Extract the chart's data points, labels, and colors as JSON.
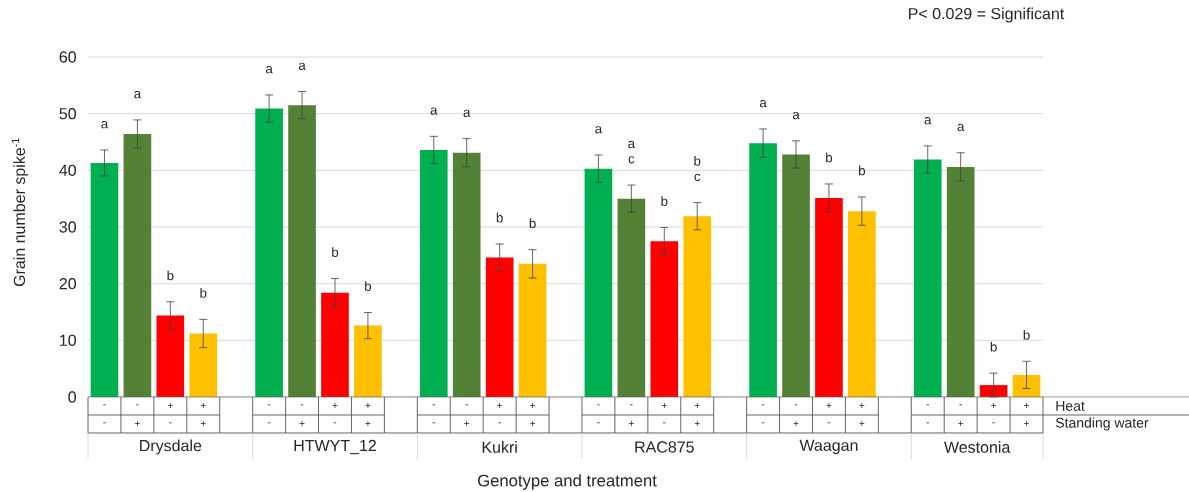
{
  "chart_data": {
    "type": "bar",
    "ylabel": "Grain number spike$^{-1}$",
    "xlabel": "Genotype and treatment",
    "categories": [
      "Drysdale",
      "HTWYT_12",
      "Kukri",
      "RAC875",
      "Waagan",
      "Westonia"
    ],
    "series": [
      {
        "color": "#00b050",
        "values": [
          41.3,
          50.9,
          43.6,
          40.3,
          44.8,
          41.9
        ],
        "errors": [
          2.3,
          2.4,
          2.4,
          2.4,
          2.5,
          2.4
        ],
        "value_labels": [
          "a",
          "a",
          "a",
          "a",
          "a",
          "a"
        ]
      },
      {
        "color": "#538135",
        "values": [
          46.4,
          51.5,
          43.1,
          35.0,
          42.8,
          40.6
        ],
        "errors": [
          2.5,
          2.4,
          2.5,
          2.4,
          2.4,
          2.5
        ],
        "value_labels": [
          "a",
          "a",
          "a",
          "a c",
          "a",
          "a"
        ]
      },
      {
        "color": "#ff0000",
        "values": [
          14.4,
          18.4,
          24.6,
          27.5,
          35.1,
          2.1
        ],
        "errors": [
          2.4,
          2.5,
          2.4,
          2.4,
          2.5,
          2.1
        ],
        "value_labels": [
          "b",
          "b",
          "b",
          "b",
          "b",
          "b"
        ]
      },
      {
        "color": "#ffc000",
        "values": [
          11.2,
          12.6,
          23.5,
          31.9,
          32.8,
          3.9
        ],
        "errors": [
          2.5,
          2.3,
          2.5,
          2.4,
          2.5,
          2.4
        ],
        "value_labels": [
          "b",
          "b",
          "b",
          "b c",
          "b",
          "b"
        ]
      }
    ],
    "ylim": [
      0,
      60
    ],
    "yticks": [
      0,
      10,
      20,
      30,
      40,
      50,
      60
    ],
    "grid": "y",
    "annotations": [
      "P< 0.029 = Significant",
      "Heat",
      "Standing water",
      "-",
      "-",
      "+",
      "+",
      "-",
      "-",
      "+",
      "+",
      "-",
      "-",
      "+",
      "+",
      "-",
      "-",
      "+",
      "+",
      "-",
      "-",
      "+",
      "+",
      "-",
      "-",
      "+",
      "+",
      "-",
      "+",
      "-",
      "+",
      "-",
      "+",
      "-",
      "+",
      "-",
      "+",
      "-",
      "+",
      "-",
      "+",
      "-",
      "+",
      "-",
      "+",
      "-",
      "+",
      "-",
      "+",
      "-",
      "+"
    ]
  }
}
